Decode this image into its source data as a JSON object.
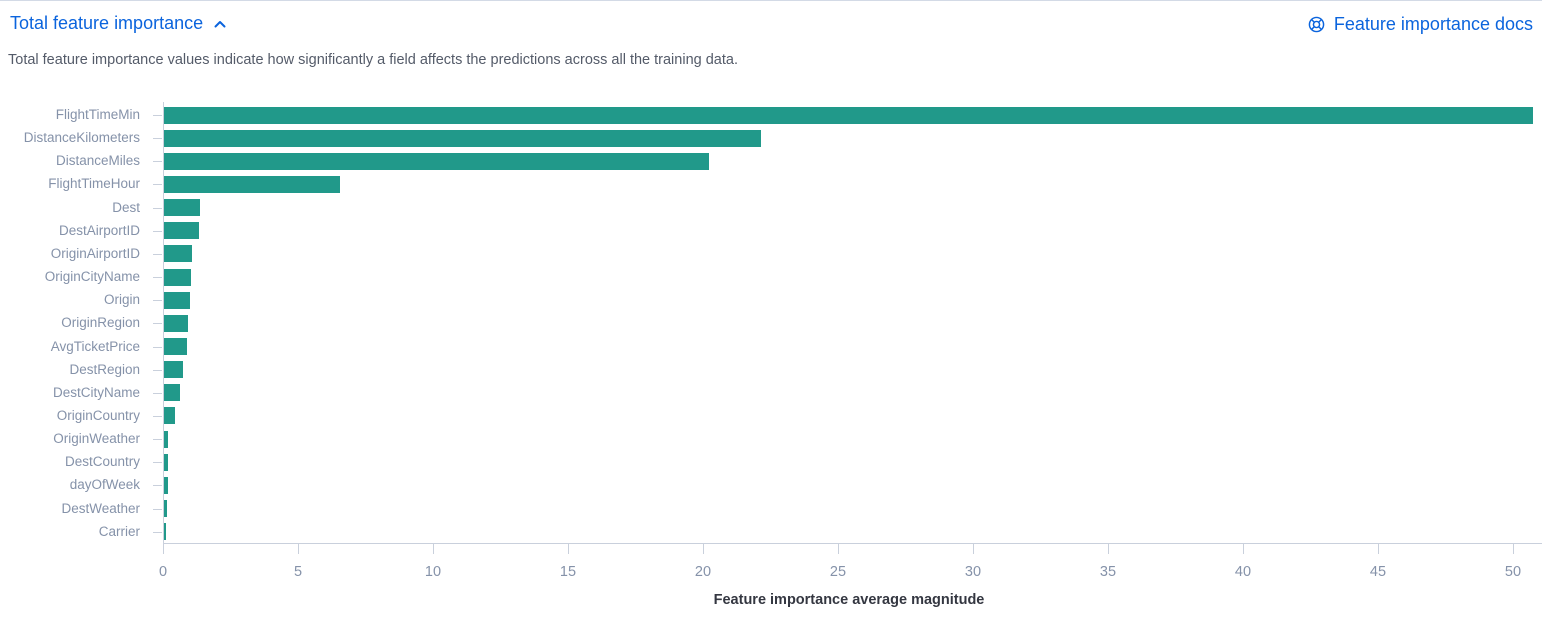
{
  "header": {
    "title": "Total feature importance",
    "docs_link_label": "Feature importance docs"
  },
  "description": "Total feature importance values indicate how significantly a field affects the predictions across all the training data.",
  "colors": {
    "link_blue": "#0B64DD",
    "bar_teal": "#21998A",
    "axis_label_text": "#8592A9",
    "axis_line": "#C9D0DC",
    "description_text": "#545B69",
    "axis_title_text": "#343741"
  },
  "chart_data": {
    "type": "bar",
    "orientation": "horizontal",
    "title": "Total feature importance",
    "xlabel": "Feature importance average magnitude",
    "ylabel": "",
    "xlim": [
      0,
      51
    ],
    "x_ticks": [
      0,
      5,
      10,
      15,
      20,
      25,
      30,
      35,
      40,
      45,
      50
    ],
    "grid": false,
    "legend": false,
    "categories": [
      "FlightTimeMin",
      "DistanceKilometers",
      "DistanceMiles",
      "FlightTimeHour",
      "Dest",
      "DestAirportID",
      "OriginAirportID",
      "OriginCityName",
      "Origin",
      "OriginRegion",
      "AvgTicketPrice",
      "DestRegion",
      "DestCityName",
      "OriginCountry",
      "OriginWeather",
      "DestCountry",
      "dayOfWeek",
      "DestWeather",
      "Carrier"
    ],
    "values": [
      50.7,
      22.1,
      20.2,
      6.5,
      1.35,
      1.3,
      1.05,
      1.0,
      0.95,
      0.9,
      0.85,
      0.7,
      0.6,
      0.4,
      0.16,
      0.14,
      0.14,
      0.12,
      0.08
    ]
  }
}
